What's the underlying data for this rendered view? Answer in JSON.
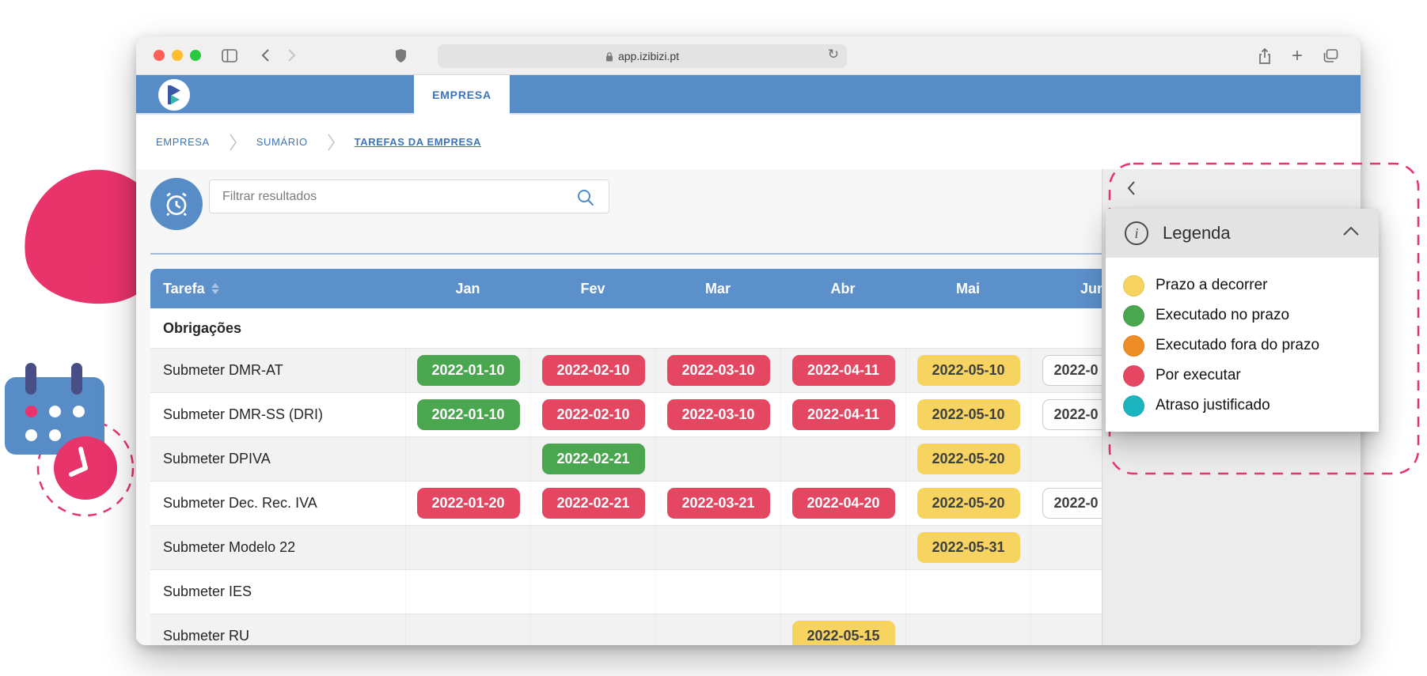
{
  "browser": {
    "url": "app.izibizi.pt",
    "traffic_lights": [
      "#FF5F57",
      "#FEBC2E",
      "#28C840"
    ]
  },
  "navbar": {
    "tab_label": "EMPRESA"
  },
  "breadcrumb": {
    "items": [
      "EMPRESA",
      "SUMÁRIO",
      "TAREFAS DA EMPRESA"
    ]
  },
  "toolbar": {
    "search_placeholder": "Filtrar resultados"
  },
  "table": {
    "columns": [
      "Tarefa",
      "Jan",
      "Fev",
      "Mar",
      "Abr",
      "Mai",
      "Jun"
    ],
    "section_label": "Obrigações",
    "rows": [
      {
        "task": "Submeter DMR-AT",
        "cells": {
          "jan": {
            "text": "2022-01-10",
            "status": "green"
          },
          "fev": {
            "text": "2022-02-10",
            "status": "red"
          },
          "mar": {
            "text": "2022-03-10",
            "status": "red"
          },
          "abr": {
            "text": "2022-04-11",
            "status": "red"
          },
          "mai": {
            "text": "2022-05-10",
            "status": "yellow"
          },
          "jun": {
            "text": "2022-0",
            "status": "outline"
          }
        }
      },
      {
        "task": "Submeter DMR-SS (DRI)",
        "cells": {
          "jan": {
            "text": "2022-01-10",
            "status": "green"
          },
          "fev": {
            "text": "2022-02-10",
            "status": "red"
          },
          "mar": {
            "text": "2022-03-10",
            "status": "red"
          },
          "abr": {
            "text": "2022-04-11",
            "status": "red"
          },
          "mai": {
            "text": "2022-05-10",
            "status": "yellow"
          },
          "jun": {
            "text": "2022-0",
            "status": "outline"
          }
        }
      },
      {
        "task": "Submeter DPIVA",
        "cells": {
          "fev": {
            "text": "2022-02-21",
            "status": "green"
          },
          "mai": {
            "text": "2022-05-20",
            "status": "yellow"
          }
        }
      },
      {
        "task": "Submeter Dec. Rec. IVA",
        "cells": {
          "jan": {
            "text": "2022-01-20",
            "status": "red"
          },
          "fev": {
            "text": "2022-02-21",
            "status": "red"
          },
          "mar": {
            "text": "2022-03-21",
            "status": "red"
          },
          "abr": {
            "text": "2022-04-20",
            "status": "red"
          },
          "mai": {
            "text": "2022-05-20",
            "status": "yellow"
          },
          "jun": {
            "text": "2022-0",
            "status": "outline"
          }
        }
      },
      {
        "task": "Submeter Modelo 22",
        "cells": {
          "mai": {
            "text": "2022-05-31",
            "status": "yellow"
          }
        }
      },
      {
        "task": "Submeter IES",
        "cells": {}
      },
      {
        "task": "Submeter RU",
        "cells": {
          "abr": {
            "text": "2022-05-15",
            "status": "yellow"
          }
        }
      }
    ]
  },
  "legend": {
    "title": "Legenda",
    "items": [
      {
        "label": "Prazo a decorrer",
        "color": "#F7D45F"
      },
      {
        "label": "Executado no prazo",
        "color": "#4AA64F"
      },
      {
        "label": "Executado fora do prazo",
        "color": "#EE8C25"
      },
      {
        "label": "Por executar",
        "color": "#E54763"
      },
      {
        "label": "Atraso justificado",
        "color": "#1CB4BE"
      }
    ]
  },
  "colors": {
    "navbar": "#578CC7",
    "table_header": "#5C90CB",
    "accent_pink": "#E8336B",
    "badges": {
      "green": {
        "bg": "#4AA64F",
        "fg": "#FFFFFF"
      },
      "red": {
        "bg": "#E54763",
        "fg": "#FFFFFF"
      },
      "yellow": {
        "bg": "#F7D45F",
        "fg": "#3F3F3F"
      },
      "outline": {
        "bg": "#FFFFFF",
        "fg": "#3F3F3F",
        "border": "#CCCCCC"
      }
    }
  }
}
